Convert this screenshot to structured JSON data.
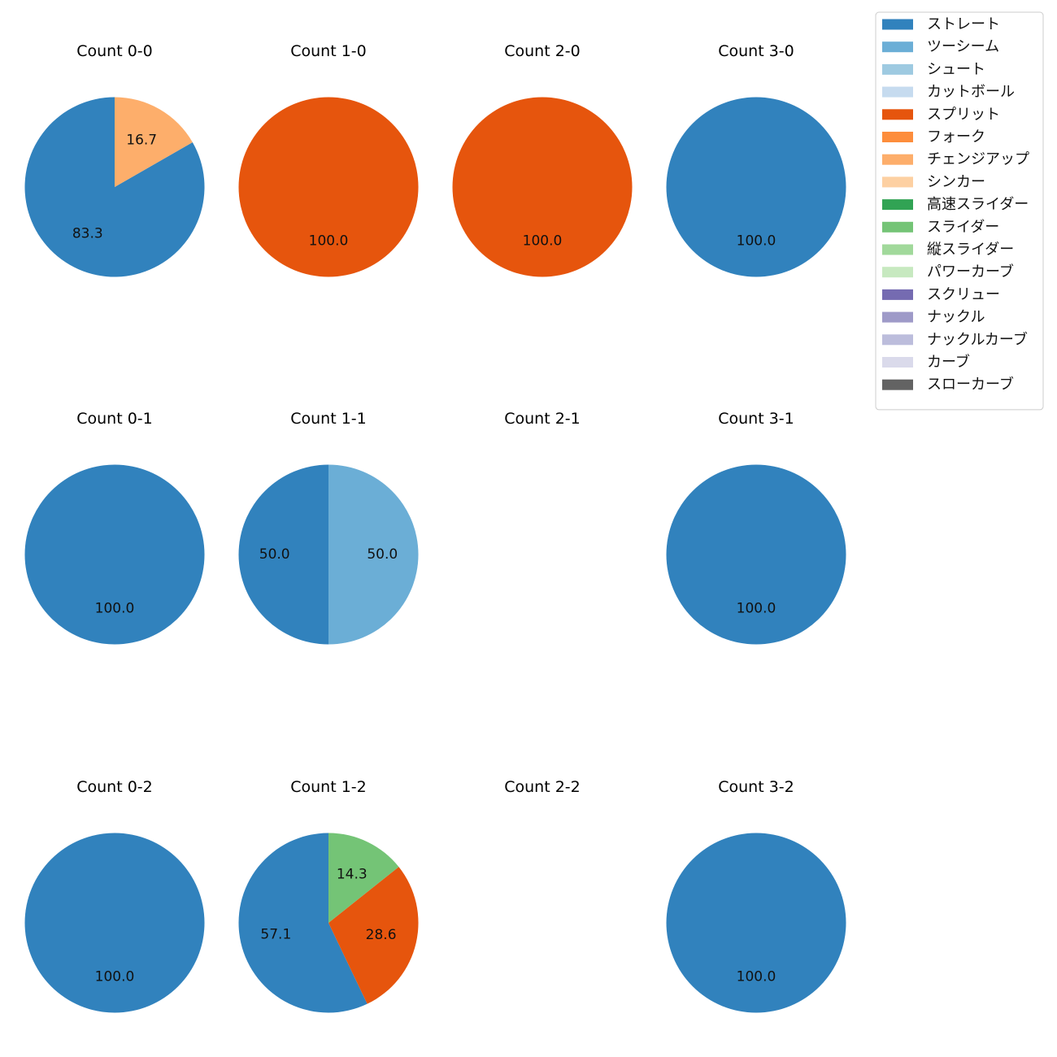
{
  "chart_data": {
    "type": "pie",
    "legend": {
      "placement": "top-right",
      "entries": [
        {
          "name": "ストレート",
          "color": "#3182bd"
        },
        {
          "name": "ツーシーム",
          "color": "#6baed6"
        },
        {
          "name": "シュート",
          "color": "#9ecae1"
        },
        {
          "name": "カットボール",
          "color": "#c6dbef"
        },
        {
          "name": "スプリット",
          "color": "#e6550d"
        },
        {
          "name": "フォーク",
          "color": "#fd8d3c"
        },
        {
          "name": "チェンジアップ",
          "color": "#fdae6b"
        },
        {
          "name": "シンカー",
          "color": "#fdd0a2"
        },
        {
          "name": "高速スライダー",
          "color": "#31a354"
        },
        {
          "name": "スライダー",
          "color": "#74c476"
        },
        {
          "name": "縦スライダー",
          "color": "#a1d99b"
        },
        {
          "name": "パワーカーブ",
          "color": "#c7e9c0"
        },
        {
          "name": "スクリュー",
          "color": "#756bb1"
        },
        {
          "name": "ナックル",
          "color": "#9e9ac8"
        },
        {
          "name": "ナックルカーブ",
          "color": "#bcbddc"
        },
        {
          "name": "カーブ",
          "color": "#dadaeb"
        },
        {
          "name": "スローカーブ",
          "color": "#636363"
        }
      ]
    },
    "panels": [
      {
        "title": "Count 0-0",
        "slices": [
          {
            "pitch": "ストレート",
            "value": 83.3,
            "label": "83.3"
          },
          {
            "pitch": "チェンジアップ",
            "value": 16.7,
            "label": "16.7"
          }
        ]
      },
      {
        "title": "Count 1-0",
        "slices": [
          {
            "pitch": "スプリット",
            "value": 100.0,
            "label": "100.0"
          }
        ]
      },
      {
        "title": "Count 2-0",
        "slices": [
          {
            "pitch": "スプリット",
            "value": 100.0,
            "label": "100.0"
          }
        ]
      },
      {
        "title": "Count 3-0",
        "slices": [
          {
            "pitch": "ストレート",
            "value": 100.0,
            "label": "100.0"
          }
        ]
      },
      {
        "title": "Count 0-1",
        "slices": [
          {
            "pitch": "ストレート",
            "value": 100.0,
            "label": "100.0"
          }
        ]
      },
      {
        "title": "Count 1-1",
        "slices": [
          {
            "pitch": "ストレート",
            "value": 50.0,
            "label": "50.0"
          },
          {
            "pitch": "ツーシーム",
            "value": 50.0,
            "label": "50.0"
          }
        ]
      },
      {
        "title": "Count 2-1",
        "slices": []
      },
      {
        "title": "Count 3-1",
        "slices": [
          {
            "pitch": "ストレート",
            "value": 100.0,
            "label": "100.0"
          }
        ]
      },
      {
        "title": "Count 0-2",
        "slices": [
          {
            "pitch": "ストレート",
            "value": 100.0,
            "label": "100.0"
          }
        ]
      },
      {
        "title": "Count 1-2",
        "slices": [
          {
            "pitch": "ストレート",
            "value": 57.1,
            "label": "57.1"
          },
          {
            "pitch": "スプリット",
            "value": 28.6,
            "label": "28.6"
          },
          {
            "pitch": "スライダー",
            "value": 14.3,
            "label": "14.3"
          }
        ]
      },
      {
        "title": "Count 2-2",
        "slices": []
      },
      {
        "title": "Count 3-2",
        "slices": [
          {
            "pitch": "ストレート",
            "value": 100.0,
            "label": "100.0"
          }
        ]
      }
    ]
  }
}
